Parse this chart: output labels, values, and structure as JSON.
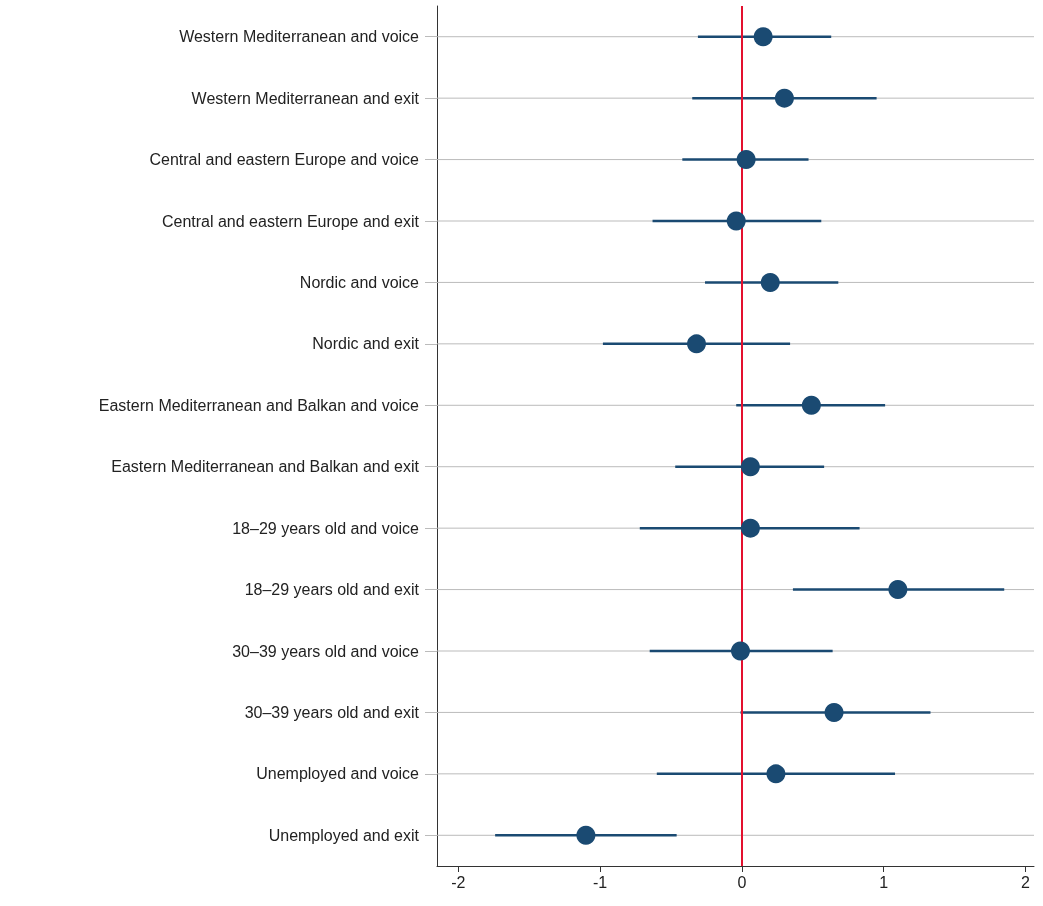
{
  "chart_data": {
    "type": "scatter",
    "orientation": "horizontal",
    "categories": [
      "Western Mediterranean and voice",
      "Western Mediterranean and exit",
      "Central and eastern Europe and voice",
      "Central and eastern Europe and exit",
      "Nordic and voice",
      "Nordic and exit",
      "Eastern Mediterranean and Balkan and voice",
      "Eastern Mediterranean and Balkan and exit",
      "18–29 years old and voice",
      "18–29 years old and exit",
      "30–39 years old and voice",
      "30–39 years old and exit",
      "Unemployed and voice",
      "Unemployed and exit"
    ],
    "values": [
      0.15,
      0.3,
      0.03,
      -0.04,
      0.2,
      -0.32,
      0.49,
      0.06,
      0.06,
      1.1,
      -0.01,
      0.65,
      0.24,
      -1.1
    ],
    "errors": [
      [
        -0.31,
        0.63
      ],
      [
        -0.35,
        0.95
      ],
      [
        -0.42,
        0.47
      ],
      [
        -0.63,
        0.56
      ],
      [
        -0.26,
        0.68
      ],
      [
        -0.98,
        0.34
      ],
      [
        -0.04,
        1.01
      ],
      [
        -0.47,
        0.58
      ],
      [
        -0.72,
        0.83
      ],
      [
        0.36,
        1.85
      ],
      [
        -0.65,
        0.64
      ],
      [
        -0.01,
        1.33
      ],
      [
        -0.6,
        1.08
      ],
      [
        -1.74,
        -0.46
      ]
    ],
    "color": "#1a4a72",
    "marker": "circle",
    "xlim": [
      -2.15,
      2.06
    ],
    "xticks": [
      -2,
      -1,
      0,
      1,
      2
    ],
    "grid": "y",
    "ref_lines": [
      {
        "axis": "x",
        "value": 0,
        "color": "#e3102e"
      }
    ]
  }
}
